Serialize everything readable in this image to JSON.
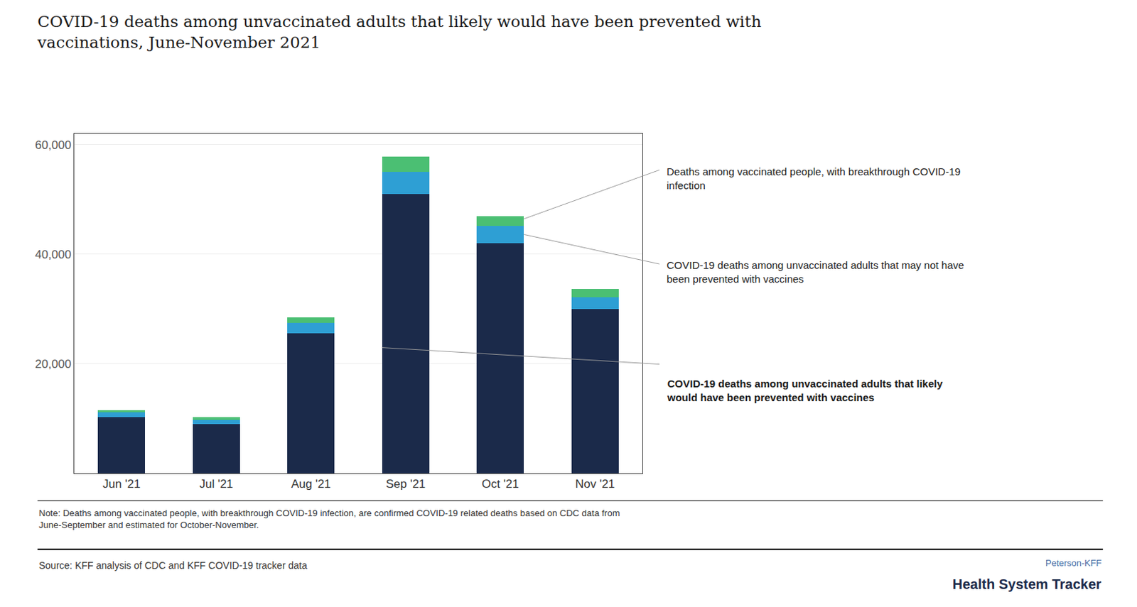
{
  "chart_data": {
    "type": "bar",
    "title": "COVID-19 deaths among unvaccinated adults that likely would have been prevented with\nvaccinations, June-November 2021",
    "categories": [
      "Jun '21",
      "Jul '21",
      "Aug '21",
      "Sep '21",
      "Oct '21",
      "Nov '21"
    ],
    "series": [
      {
        "name": "COVID-19 deaths among unvaccinated adults that likely\nwould have been prevented with vaccines",
        "color": "#1b2a4a",
        "values": [
          10200,
          9000,
          25500,
          51000,
          42000,
          30000
        ]
      },
      {
        "name": "COVID-19 deaths among unvaccinated adults that may not have\nbeen prevented with vaccines",
        "color": "#2e9fd4",
        "values": [
          900,
          800,
          2000,
          4000,
          3200,
          2200
        ]
      },
      {
        "name": "Deaths among vaccinated people, with breakthrough COVID-19\ninfection",
        "color": "#4bbf73",
        "values": [
          400,
          500,
          1000,
          2800,
          1800,
          1500
        ]
      }
    ],
    "stacked": true,
    "ylim": [
      0,
      62000
    ],
    "yticks": [
      {
        "value": 20000,
        "label": "20,000"
      },
      {
        "value": 40000,
        "label": "40,000"
      },
      {
        "value": 60000,
        "label": "60,000"
      }
    ],
    "grid": true,
    "annotations": [
      {
        "text": "Note: Deaths among vaccinated people, with breakthrough COVID-19 infection, are confirmed COVID-19 related deaths based on CDC data from\nJune-September and estimated for October-November."
      },
      {
        "text": "Source: KFF analysis of CDC and KFF COVID-19 tracker data"
      },
      {
        "text": "Peterson-KFF",
        "color": "#4a6fa5"
      },
      {
        "text": "Health System Tracker",
        "color": "#1b2a4a"
      }
    ]
  }
}
